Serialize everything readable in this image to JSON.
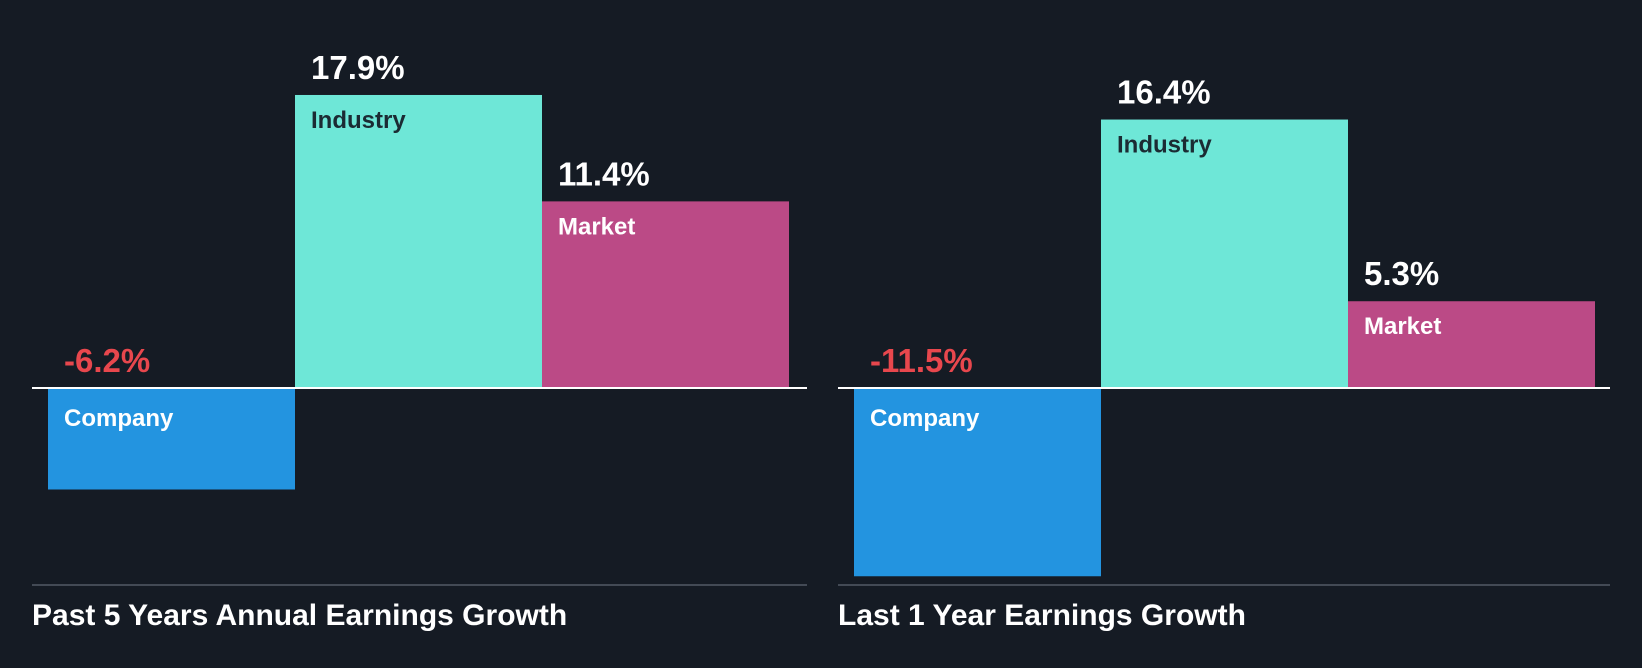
{
  "chart_data": [
    {
      "type": "bar",
      "title": "Past 5 Years Annual Earnings Growth",
      "categories": [
        "Company",
        "Industry",
        "Market"
      ],
      "values": [
        -6.2,
        17.9,
        11.4
      ],
      "value_labels": [
        "-6.2%",
        "17.9%",
        "11.4%"
      ],
      "unit": "%",
      "ylim": [
        -12.7,
        19.5
      ],
      "xlabel": "",
      "ylabel": "",
      "grid": false,
      "legend": "none"
    },
    {
      "type": "bar",
      "title": "Last 1 Year Earnings Growth",
      "categories": [
        "Company",
        "Industry",
        "Market"
      ],
      "values": [
        -11.5,
        16.4,
        5.3
      ],
      "value_labels": [
        "-11.5%",
        "16.4%",
        "5.3%"
      ],
      "unit": "%",
      "ylim": [
        -11.5,
        18.0
      ],
      "xlabel": "",
      "ylabel": "",
      "grid": false,
      "legend": "none"
    }
  ],
  "colors": {
    "background": "#151b24",
    "company": "#2394e0",
    "industry": "#6ee7d7",
    "market": "#bb4a86",
    "negative_value": "#e8474d",
    "positive_value": "#ffffff",
    "industry_text": "#1b2b33",
    "bar_text_light": "#ffffff",
    "zero_line": "#ffffff",
    "baseline": "#434a55",
    "title": "#ffffff"
  }
}
